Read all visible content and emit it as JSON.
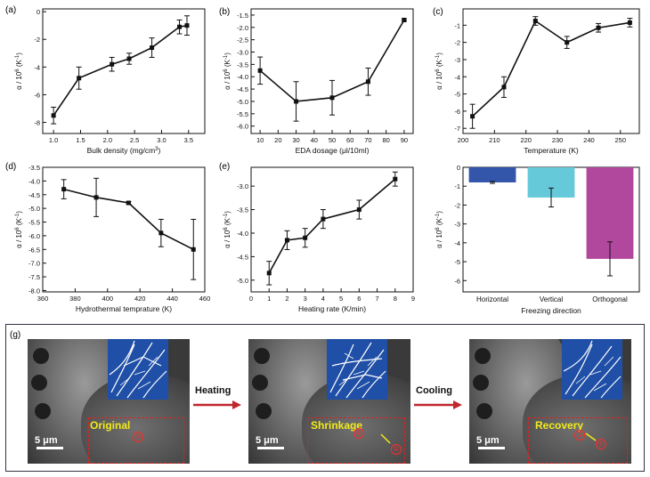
{
  "panel_labels": [
    "(a)",
    "(b)",
    "(c)",
    "(d)",
    "(e)",
    "(g)"
  ],
  "y_label_prefix": "α / 10",
  "y_label_exp": "6",
  "y_label_unit": " (K",
  "y_label_unit_exp": "-1",
  "y_label_close": ")",
  "colors": {
    "line": "#111111",
    "bar_horizontal": "#3355aa",
    "bar_vertical": "#66c9d9",
    "bar_orthogonal": "#b2479e",
    "dashed_box": "#e02020",
    "label_yellow": "#f3ea1a",
    "inset_blue": "#1f4fa6"
  },
  "chart_data": [
    {
      "id": "a",
      "type": "line",
      "x": [
        1.0,
        1.47,
        2.08,
        2.4,
        2.82,
        3.33,
        3.47
      ],
      "y": [
        -7.5,
        -4.8,
        -3.8,
        -3.4,
        -2.6,
        -1.1,
        -1.0
      ],
      "err": [
        0.6,
        0.8,
        0.5,
        0.4,
        0.7,
        0.5,
        0.7
      ],
      "xlabel": "Bulk density (mg/cm",
      "xlabel_sup": "3",
      "xlabel_end": ")",
      "xlim": [
        0.8,
        3.8
      ],
      "ylim": [
        -8.8,
        0.2
      ],
      "xticks": [
        1.0,
        1.5,
        2.0,
        2.5,
        3.0,
        3.5
      ],
      "xtick_labels": [
        "1.0",
        "1.5",
        "2.0",
        "2.5",
        "3.0",
        "3.5"
      ],
      "yticks": [
        -8,
        -6,
        -4,
        -2,
        0
      ],
      "ytick_labels": [
        "-8",
        "-6",
        "-4",
        "-2",
        "0"
      ]
    },
    {
      "id": "b",
      "type": "line",
      "x": [
        10,
        30,
        50,
        70,
        90
      ],
      "y": [
        -3.75,
        -5.0,
        -4.85,
        -4.2,
        -1.7
      ],
      "err": [
        0.55,
        0.8,
        0.7,
        0.55,
        0.05
      ],
      "xlabel": "EDA dosage (μl/10ml)",
      "xlim": [
        5,
        95
      ],
      "ylim": [
        -6.3,
        -1.25
      ],
      "xticks": [
        10,
        20,
        30,
        40,
        50,
        60,
        70,
        80,
        90
      ],
      "xtick_labels": [
        "10",
        "20",
        "30",
        "40",
        "50",
        "60",
        "70",
        "80",
        "90"
      ],
      "yticks": [
        -6.0,
        -5.5,
        -5.0,
        -4.5,
        -4.0,
        -3.5,
        -3.0,
        -2.5,
        -2.0,
        -1.5
      ],
      "ytick_labels": [
        "-6.0",
        "-5.5",
        "-5.0",
        "-4.5",
        "-4.0",
        "-3.5",
        "-3.0",
        "-2.5",
        "-2.0",
        "-1.5"
      ]
    },
    {
      "id": "c",
      "type": "line",
      "x": [
        203,
        213,
        223,
        233,
        243,
        253
      ],
      "y": [
        -6.3,
        -4.6,
        -0.75,
        -2.0,
        -1.15,
        -0.85
      ],
      "err": [
        0.7,
        0.6,
        0.25,
        0.35,
        0.25,
        0.25
      ],
      "xlabel": "Temperature  (K)",
      "xlim": [
        200,
        256
      ],
      "ylim": [
        -7.3,
        -0.05
      ],
      "xticks": [
        200,
        210,
        220,
        230,
        240,
        250
      ],
      "xtick_labels": [
        "200",
        "210",
        "220",
        "230",
        "240",
        "250"
      ],
      "yticks": [
        -7,
        -6,
        -5,
        -4,
        -3,
        -2,
        -1
      ],
      "ytick_labels": [
        "-7",
        "-6",
        "-5",
        "-4",
        "-3",
        "-2",
        "-1"
      ]
    },
    {
      "id": "d",
      "type": "line",
      "x": [
        373,
        393,
        413,
        433,
        453
      ],
      "y": [
        -4.3,
        -4.6,
        -4.8,
        -5.9,
        -6.5
      ],
      "err": [
        0.35,
        0.7,
        0.05,
        0.5,
        1.1
      ],
      "xlabel": "Hydrothermal temprature (K)",
      "xlim": [
        360,
        460
      ],
      "ylim": [
        -8.05,
        -3.5
      ],
      "xticks": [
        360,
        380,
        400,
        420,
        440,
        460
      ],
      "xtick_labels": [
        "360",
        "380",
        "400",
        "420",
        "440",
        "460"
      ],
      "yticks": [
        -8.0,
        -7.5,
        -7.0,
        -6.5,
        -6.0,
        -5.5,
        -5.0,
        -4.5,
        -4.0,
        -3.5
      ],
      "ytick_labels": [
        "-8.0",
        "-7.5",
        "-7.0",
        "-6.5",
        "-6.0",
        "-5.5",
        "-5.0",
        "-4.5",
        "-4.0",
        "-3.5"
      ]
    },
    {
      "id": "e",
      "type": "line",
      "x": [
        1,
        2,
        3,
        4,
        6,
        8
      ],
      "y": [
        -4.85,
        -4.15,
        -4.1,
        -3.7,
        -3.5,
        -2.85
      ],
      "err": [
        0.25,
        0.2,
        0.2,
        0.2,
        0.2,
        0.15
      ],
      "xlabel": "Heating rate (K/min)",
      "xlim": [
        0,
        9
      ],
      "ylim": [
        -5.25,
        -2.6
      ],
      "xticks": [
        0,
        1,
        2,
        3,
        4,
        5,
        6,
        7,
        8,
        9
      ],
      "xtick_labels": [
        "0",
        "1",
        "2",
        "3",
        "4",
        "5",
        "6",
        "7",
        "8",
        "9"
      ],
      "yticks": [
        -5.0,
        -4.5,
        -4.0,
        -3.5,
        -3.0
      ],
      "ytick_labels": [
        "-5.0",
        "-4.5",
        "-4.0",
        "-3.5",
        "-3.0"
      ]
    },
    {
      "id": "f",
      "type": "bar",
      "categories": [
        "Horizontal",
        "Vertical",
        "Orthogonal"
      ],
      "values": [
        -0.8,
        -1.6,
        -4.85
      ],
      "err": [
        0.05,
        0.5,
        0.9
      ],
      "colors": [
        "#3355aa",
        "#66c9d9",
        "#b2479e"
      ],
      "xlabel": "Freezing direction",
      "ylim": [
        -6.6,
        0
      ],
      "yticks": [
        0,
        -1,
        -2,
        -3,
        -4,
        -5,
        -6
      ],
      "ytick_labels": [
        "0",
        "-1",
        "-2",
        "-3",
        "-4",
        "-5",
        "-6"
      ]
    }
  ],
  "panel_g": {
    "images": [
      {
        "label": "Original",
        "markers": [
          "①"
        ],
        "scale": "5 μm"
      },
      {
        "label": "Shrinkage",
        "markers": [
          "②",
          "①"
        ],
        "scale": "5 μm"
      },
      {
        "label": "Recovery",
        "markers": [
          "③",
          "①"
        ],
        "scale": "5 μm"
      }
    ],
    "arrows": [
      "Heating",
      "Cooling"
    ]
  }
}
